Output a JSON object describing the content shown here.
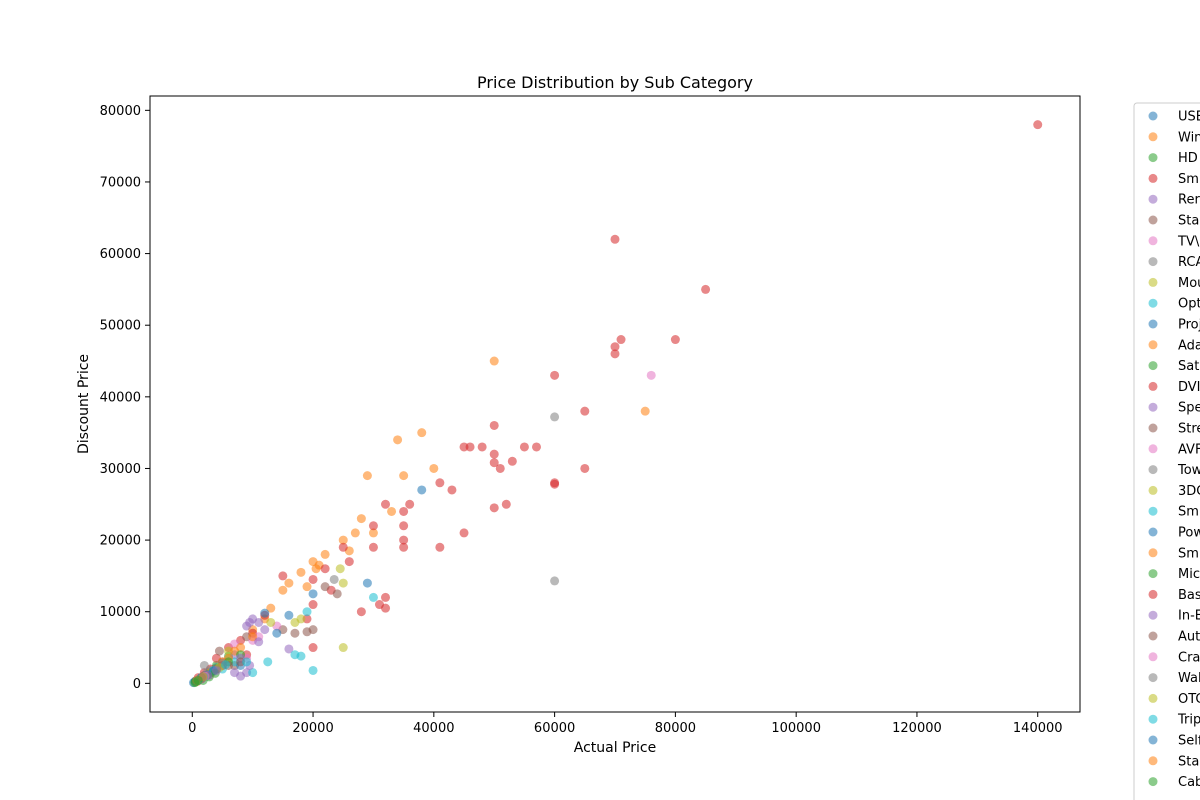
{
  "chart_data": {
    "type": "scatter",
    "title": "Price Distribution by Sub Category",
    "xlabel": "Actual Price",
    "ylabel": "Discount Price",
    "xlim": [
      -7000,
      147000
    ],
    "ylim": [
      -4000,
      82000
    ],
    "xticks": [
      0,
      20000,
      40000,
      60000,
      80000,
      100000,
      120000,
      140000
    ],
    "yticks": [
      0,
      10000,
      20000,
      30000,
      40000,
      50000,
      60000,
      70000,
      80000
    ],
    "grid": false,
    "legend_position": "outside-right",
    "series": [
      {
        "name": "USB",
        "color": "#1f77b4",
        "points": [
          [
            200,
            100
          ],
          [
            500,
            300
          ],
          [
            800,
            400
          ],
          [
            1200,
            600
          ],
          [
            1500,
            700
          ],
          [
            2000,
            1100
          ],
          [
            3000,
            1500
          ],
          [
            4000,
            2200
          ]
        ]
      },
      {
        "name": "Win",
        "color": "#ff7f0e",
        "points": [
          [
            15000,
            13000
          ],
          [
            16000,
            14000
          ],
          [
            18000,
            15500
          ],
          [
            20000,
            17000
          ],
          [
            21000,
            16500
          ],
          [
            22000,
            18000
          ],
          [
            25000,
            20000
          ],
          [
            28000,
            23000
          ],
          [
            29000,
            29000
          ],
          [
            34000,
            34000
          ],
          [
            35000,
            29000
          ],
          [
            38000,
            35000
          ],
          [
            40000,
            30000
          ],
          [
            50000,
            45000
          ],
          [
            75000,
            38000
          ],
          [
            26000,
            18500
          ],
          [
            33000,
            24000
          ],
          [
            30000,
            21000
          ],
          [
            13000,
            10500
          ],
          [
            12000,
            9000
          ],
          [
            10000,
            7500
          ],
          [
            20500,
            16000
          ],
          [
            27000,
            21000
          ],
          [
            19000,
            13500
          ]
        ]
      },
      {
        "name": "HD",
        "color": "#2ca02c",
        "points": [
          [
            500,
            200
          ],
          [
            1000,
            500
          ],
          [
            1500,
            700
          ],
          [
            2500,
            1200
          ],
          [
            4000,
            2500
          ],
          [
            6000,
            3800
          ]
        ]
      },
      {
        "name": "Sm",
        "color": "#d62728",
        "points": [
          [
            140000,
            78000
          ],
          [
            70000,
            62000
          ],
          [
            85000,
            55000
          ],
          [
            80000,
            48000
          ],
          [
            71000,
            48000
          ],
          [
            70000,
            47000
          ],
          [
            70000,
            46000
          ],
          [
            60000,
            43000
          ],
          [
            65000,
            38000
          ],
          [
            50000,
            36000
          ],
          [
            45000,
            33000
          ],
          [
            46000,
            33000
          ],
          [
            48000,
            33000
          ],
          [
            55000,
            33000
          ],
          [
            57000,
            33000
          ],
          [
            50000,
            32000
          ],
          [
            53000,
            31000
          ],
          [
            50000,
            30800
          ],
          [
            51000,
            30000
          ],
          [
            65000,
            30000
          ],
          [
            60000,
            28000
          ],
          [
            41000,
            28000
          ],
          [
            43000,
            27000
          ],
          [
            52000,
            25000
          ],
          [
            36000,
            25000
          ],
          [
            32000,
            25000
          ],
          [
            35000,
            24000
          ],
          [
            30000,
            22000
          ],
          [
            35000,
            22000
          ],
          [
            45000,
            21000
          ],
          [
            35000,
            20000
          ],
          [
            25000,
            19000
          ],
          [
            30000,
            19000
          ],
          [
            35000,
            19000
          ],
          [
            41000,
            19000
          ],
          [
            26000,
            17000
          ],
          [
            22000,
            16000
          ],
          [
            20000,
            14500
          ],
          [
            23000,
            13000
          ],
          [
            32000,
            12000
          ],
          [
            20000,
            11000
          ],
          [
            31000,
            11000
          ],
          [
            32000,
            10500
          ],
          [
            28000,
            10000
          ],
          [
            19000,
            9000
          ],
          [
            15000,
            15000
          ],
          [
            20000,
            5000
          ],
          [
            12000,
            9500
          ],
          [
            10000,
            7000
          ],
          [
            8000,
            6000
          ],
          [
            6000,
            5000
          ],
          [
            4000,
            3500
          ],
          [
            3000,
            2000
          ],
          [
            2000,
            1500
          ],
          [
            1000,
            800
          ],
          [
            9000,
            4000
          ]
        ]
      },
      {
        "name": "Rer",
        "color": "#9467bd",
        "points": [
          [
            8000,
            1000
          ],
          [
            9000,
            1500
          ],
          [
            9500,
            8500
          ],
          [
            10000,
            9000
          ],
          [
            11000,
            8500
          ],
          [
            12000,
            7500
          ],
          [
            16000,
            4800
          ],
          [
            9000,
            8000
          ],
          [
            7000,
            4000
          ]
        ]
      },
      {
        "name": "Sta",
        "color": "#8c564b",
        "points": [
          [
            22000,
            13500
          ],
          [
            24000,
            12500
          ],
          [
            20000,
            7500
          ],
          [
            19000,
            7200
          ],
          [
            17000,
            7000
          ],
          [
            4500,
            4500
          ],
          [
            5000,
            3000
          ],
          [
            7000,
            2500
          ],
          [
            9000,
            6500
          ],
          [
            15000,
            7500
          ]
        ]
      },
      {
        "name": "TV\\",
        "color": "#e377c2",
        "points": [
          [
            76000,
            43000
          ],
          [
            10000,
            6000
          ],
          [
            11000,
            6500
          ],
          [
            14000,
            8000
          ],
          [
            7000,
            5500
          ],
          [
            9000,
            3500
          ]
        ]
      },
      {
        "name": "RCA",
        "color": "#7f7f7f",
        "points": [
          [
            60000,
            37200
          ],
          [
            60000,
            14300
          ],
          [
            23500,
            14500
          ],
          [
            2000,
            2500
          ],
          [
            3000,
            1800
          ]
        ]
      },
      {
        "name": "Mou",
        "color": "#bcbd22",
        "points": [
          [
            25000,
            5000
          ],
          [
            24500,
            16000
          ],
          [
            25000,
            14000
          ],
          [
            13000,
            8500
          ],
          [
            18000,
            9000
          ],
          [
            6000,
            4500
          ],
          [
            17000,
            8500
          ]
        ]
      },
      {
        "name": "Opt",
        "color": "#17becf",
        "points": [
          [
            30000,
            12000
          ],
          [
            20000,
            1800
          ],
          [
            18000,
            3800
          ],
          [
            17000,
            4000
          ],
          [
            12500,
            3000
          ],
          [
            19000,
            10000
          ],
          [
            7000,
            3000
          ],
          [
            10000,
            1500
          ],
          [
            5000,
            2000
          ]
        ]
      },
      {
        "name": "Proj",
        "color": "#1f77b4",
        "points": [
          [
            38000,
            27000
          ],
          [
            29000,
            14000
          ],
          [
            20000,
            12500
          ],
          [
            16000,
            9500
          ],
          [
            12000,
            9800
          ],
          [
            14000,
            7000
          ],
          [
            8000,
            2500
          ]
        ]
      },
      {
        "name": "Ada",
        "color": "#ff7f0e",
        "points": [
          [
            5000,
            3000
          ],
          [
            6000,
            3500
          ],
          [
            7000,
            4500
          ],
          [
            8000,
            5000
          ],
          [
            10000,
            6500
          ]
        ]
      },
      {
        "name": "Sat",
        "color": "#2ca02c",
        "points": [
          [
            2000,
            1000
          ],
          [
            4000,
            2000
          ],
          [
            6000,
            3000
          ],
          [
            8000,
            4000
          ]
        ]
      },
      {
        "name": "DVI",
        "color": "#d62728",
        "points": [
          [
            50000,
            24500
          ],
          [
            60000,
            27800
          ],
          [
            3000,
            1500
          ],
          [
            5000,
            2500
          ]
        ]
      },
      {
        "name": "Spe",
        "color": "#9467bd",
        "points": [
          [
            8000,
            3500
          ],
          [
            11000,
            5800
          ],
          [
            9500,
            2500
          ],
          [
            7000,
            1500
          ]
        ]
      },
      {
        "name": "Stre",
        "color": "#8c564b",
        "points": [
          [
            4000,
            2000
          ],
          [
            6000,
            2500
          ],
          [
            8000,
            3000
          ]
        ]
      },
      {
        "name": "AVF",
        "color": "#e377c2",
        "points": [
          [
            1000,
            500
          ],
          [
            2000,
            900
          ],
          [
            3000,
            1200
          ]
        ]
      },
      {
        "name": "Tow",
        "color": "#7f7f7f",
        "points": [
          [
            2500,
            1500
          ],
          [
            4000,
            2000
          ],
          [
            5000,
            2800
          ]
        ]
      },
      {
        "name": "3DC",
        "color": "#bcbd22",
        "points": [
          [
            3000,
            1500
          ],
          [
            4500,
            2200
          ]
        ]
      },
      {
        "name": "Sm",
        "color": "#17becf",
        "points": [
          [
            3500,
            1800
          ],
          [
            5500,
            2600
          ],
          [
            9000,
            3000
          ]
        ]
      },
      {
        "name": "Pow",
        "color": "#1f77b4",
        "points": [
          [
            1500,
            800
          ],
          [
            2500,
            1200
          ],
          [
            3500,
            1700
          ]
        ]
      },
      {
        "name": "Sm",
        "color": "#ff7f0e",
        "points": [
          [
            1200,
            600
          ],
          [
            2200,
            1000
          ]
        ]
      },
      {
        "name": "Mic",
        "color": "#2ca02c",
        "points": [
          [
            1800,
            400
          ],
          [
            2800,
            900
          ],
          [
            3800,
            1400
          ]
        ]
      },
      {
        "name": "Bas",
        "color": "#d62728",
        "points": [
          [
            900,
            300
          ],
          [
            1600,
            700
          ]
        ]
      },
      {
        "name": "In-E",
        "color": "#9467bd",
        "points": [
          [
            1500,
            600
          ],
          [
            2600,
            1100
          ],
          [
            4000,
            1800
          ]
        ]
      },
      {
        "name": "Aut",
        "color": "#8c564b",
        "points": [
          [
            700,
            300
          ],
          [
            1300,
            600
          ]
        ]
      },
      {
        "name": "Cra",
        "color": "#e377c2",
        "points": [
          [
            1100,
            500
          ],
          [
            2100,
            1000
          ]
        ]
      },
      {
        "name": "Wal",
        "color": "#7f7f7f",
        "points": [
          [
            800,
            400
          ],
          [
            1700,
            900
          ]
        ]
      },
      {
        "name": "OTC",
        "color": "#bcbd22",
        "points": [
          [
            600,
            200
          ],
          [
            1400,
            700
          ]
        ]
      },
      {
        "name": "Trip",
        "color": "#17becf",
        "points": [
          [
            900,
            400
          ],
          [
            1900,
            900
          ]
        ]
      },
      {
        "name": "Self",
        "color": "#1f77b4",
        "points": [
          [
            500,
            300
          ],
          [
            1500,
            800
          ]
        ]
      },
      {
        "name": "Sta",
        "color": "#ff7f0e",
        "points": [
          [
            700,
            400
          ],
          [
            1800,
            900
          ]
        ]
      },
      {
        "name": "Cab",
        "color": "#2ca02c",
        "points": [
          [
            400,
            100
          ],
          [
            1000,
            400
          ]
        ]
      }
    ]
  }
}
